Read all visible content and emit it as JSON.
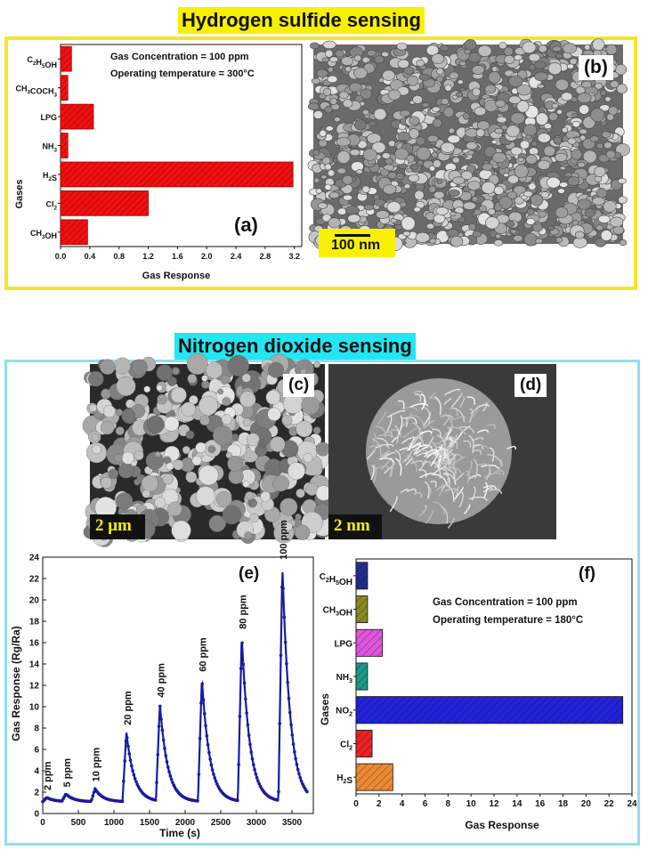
{
  "colors": {
    "h2s_border": "#f5e62a",
    "no2_border": "#8ee0ee",
    "h2s_title_bg": "#f7f100",
    "no2_title_bg": "#22e6f2",
    "chart_a_bar": "#ee1111",
    "chart_e_line": "#1a1aa0"
  },
  "sections": {
    "h2s_title": "Hydrogen sulfide sensing",
    "no2_title": "Nitrogen dioxide sensing"
  },
  "panels": {
    "a": "(a)",
    "b": "(b)",
    "c": "(c)",
    "d": "(d)",
    "e": "(e)",
    "f": "(f)"
  },
  "scale_bars": {
    "b": "100 nm",
    "c": "2 μm",
    "d": "2 nm"
  },
  "chart_data": [
    {
      "id": "a",
      "type": "bar",
      "orientation": "horizontal",
      "categories": [
        "C2H5OH",
        "CH3COCH3",
        "LPG",
        "NH3",
        "H2S",
        "Cl2",
        "CH3OH"
      ],
      "values": [
        0.15,
        0.1,
        0.45,
        0.1,
        3.18,
        1.2,
        0.37
      ],
      "xlabel": "Gas Response",
      "ylabel": "Gases",
      "xlim": [
        0,
        3.3
      ],
      "xticks": [
        "0.0",
        "0.4",
        "0.8",
        "1.2",
        "1.6",
        "2.0",
        "2.4",
        "2.8",
        "3.2"
      ],
      "annotations": [
        "Gas Concentration = 100 ppm",
        "Operating temperature = 300°C"
      ]
    },
    {
      "id": "e",
      "type": "line",
      "xlabel": "Time (s)",
      "ylabel": "Gas Response (Rg/Ra)",
      "xlim": [
        0,
        3800
      ],
      "ylim": [
        0,
        24
      ],
      "xticks": [
        "0",
        "500",
        "1000",
        "1500",
        "2000",
        "2500",
        "3000",
        "3500"
      ],
      "yticks": [
        "0",
        "2",
        "4",
        "6",
        "8",
        "10",
        "12",
        "14",
        "16",
        "18",
        "20",
        "22",
        "24"
      ],
      "pulses": [
        {
          "label": "2 ppm",
          "on": 0,
          "peak": 1.5
        },
        {
          "label": "5 ppm",
          "on": 270,
          "peak": 1.8
        },
        {
          "label": "10 ppm",
          "on": 680,
          "peak": 2.3
        },
        {
          "label": "20 ppm",
          "on": 1120,
          "peak": 7.6
        },
        {
          "label": "40 ppm",
          "on": 1590,
          "peak": 10.2
        },
        {
          "label": "60 ppm",
          "on": 2180,
          "peak": 12.6
        },
        {
          "label": "80 ppm",
          "on": 2740,
          "peak": 16.6
        },
        {
          "label": "100 ppm",
          "on": 3310,
          "peak": 23.1
        }
      ],
      "baseline": 1.1
    },
    {
      "id": "f",
      "type": "bar",
      "orientation": "horizontal",
      "categories": [
        "C2H5OH",
        "CH3OH",
        "LPG",
        "NH3",
        "NO2",
        "Cl2",
        "H2S"
      ],
      "values": [
        1.0,
        1.0,
        2.3,
        1.0,
        23.2,
        1.4,
        3.2
      ],
      "colors": [
        "#1e2f8f",
        "#8a8a22",
        "#e055e0",
        "#1a9a8a",
        "#2222dd",
        "#ee2222",
        "#ee8a33"
      ],
      "xlabel": "Gas Response",
      "ylabel": "Gases",
      "xlim": [
        0,
        24
      ],
      "xticks": [
        "0",
        "2",
        "4",
        "6",
        "8",
        "10",
        "12",
        "14",
        "16",
        "18",
        "20",
        "22",
        "24"
      ],
      "annotations": [
        "Gas Concentration = 100 ppm",
        "Operating temperature = 180°C"
      ]
    }
  ]
}
